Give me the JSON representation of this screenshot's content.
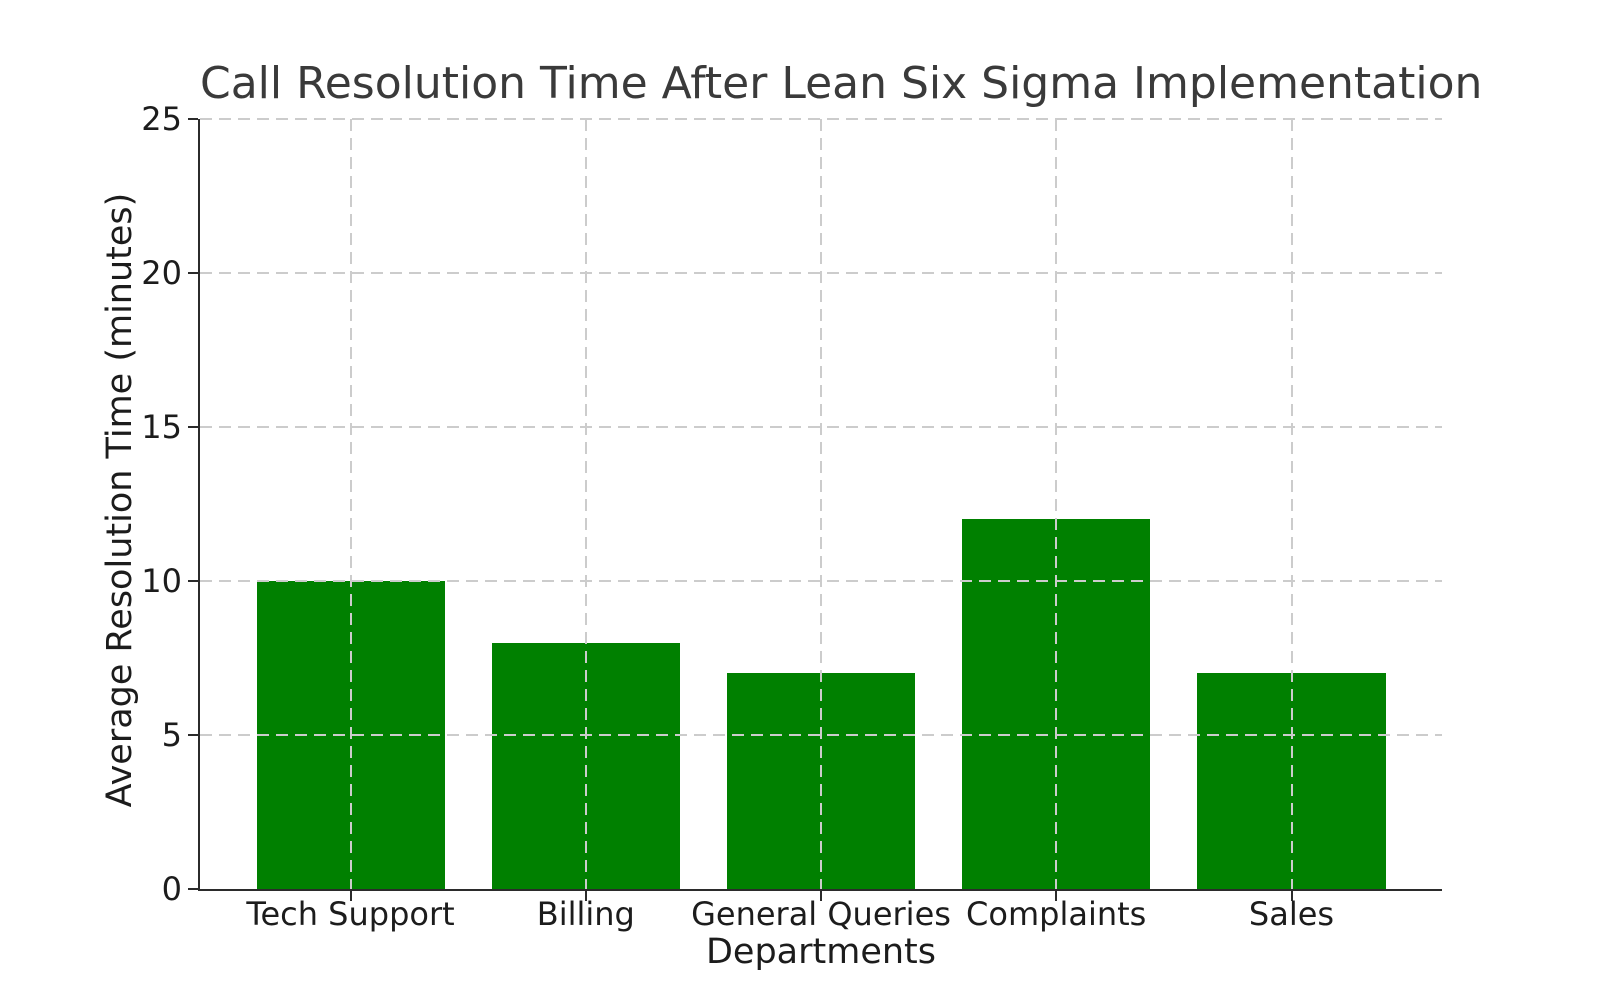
{
  "chart_data": {
    "type": "bar",
    "title": "Call Resolution Time After Lean Six Sigma Implementation",
    "xlabel": "Departments",
    "ylabel": "Average Resolution Time (minutes)",
    "categories": [
      "Tech Support",
      "Billing",
      "General Queries",
      "Complaints",
      "Sales"
    ],
    "values": [
      10,
      8,
      7,
      12,
      7
    ],
    "ylim": [
      0,
      25
    ],
    "yticks": [
      0,
      5,
      10,
      15,
      20,
      25
    ],
    "bar_color": "#008000",
    "grid": true,
    "grid_style": "dashed",
    "grid_color": "#cccccc",
    "grid_above_bars": true,
    "spine_color": "#2b2b2b",
    "tick_text_color": "#1c1c1c",
    "title_color": "#3a3a3a",
    "background": "#ffffff",
    "legend_position": "none"
  }
}
